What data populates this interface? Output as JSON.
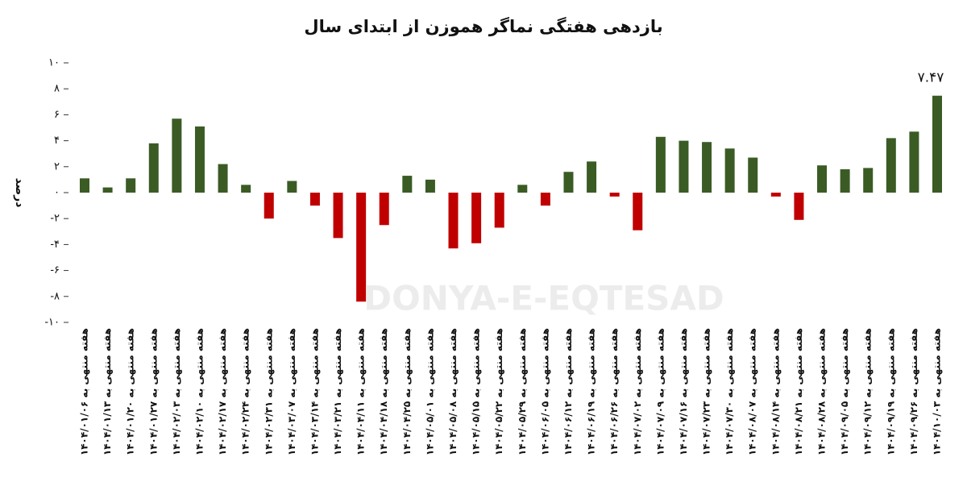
{
  "chart_data": {
    "type": "bar",
    "title": "بازدهی هفتگی نماگر هموزن از ابتدای سال",
    "y_label": "درصد",
    "watermark": "DONYA-E-EQTESAD",
    "categories": [
      "هفته منتهی به ۱۴۰۴/۰۱/۰۶",
      "هفته منتهی به ۱۴۰۴/۰۱/۱۳",
      "هفته منتهی به ۱۴۰۴/۰۱/۲۰",
      "هفته منتهی به ۱۴۰۴/۰۱/۲۷",
      "هفته منتهی به ۱۴۰۴/۰۲/۰۳",
      "هفته منتهی به ۱۴۰۴/۰۲/۱۰",
      "هفته منتهی به ۱۴۰۴/۰۲/۱۷",
      "هفته منتهی به ۱۴۰۴/۰۲/۲۴",
      "هفته منتهی به ۱۴۰۴/۰۲/۳۱",
      "هفته منتهی به ۱۴۰۴/۰۳/۰۷",
      "هفته منتهی به ۱۴۰۴/۰۳/۱۴",
      "هفته منتهی به ۱۴۰۴/۰۳/۲۱",
      "هفته منتهی به ۱۴۰۴/۰۴/۱۱",
      "هفته منتهی به ۱۴۰۴/۰۴/۱۸",
      "هفته منتهی به ۱۴۰۴/۰۴/۲۵",
      "هفته منتهی به ۱۴۰۴/۰۵/۰۱",
      "هفته منتهی به ۱۴۰۴/۰۵/۰۸",
      "هفته منتهی به ۱۴۰۴/۰۵/۱۵",
      "هفته منتهی به ۱۴۰۴/۰۵/۲۲",
      "هفته منتهی به ۱۴۰۴/۰۵/۲۹",
      "هفته منتهی به ۱۴۰۴/۰۶/۰۵",
      "هفته منتهی به ۱۴۰۴/۰۶/۱۲",
      "هفته منتهی به ۱۴۰۴/۰۶/۱۹",
      "هفته منتهی به ۱۴۰۴/۰۶/۲۶",
      "هفته منتهی به ۱۴۰۴/۰۷/۰۲",
      "هفته منتهی به ۱۴۰۴/۰۷/۰۹",
      "هفته منتهی به ۱۴۰۴/۰۷/۱۶",
      "هفته منتهی به ۱۴۰۴/۰۷/۲۳",
      "هفته منتهی به ۱۴۰۴/۰۷/۳۰",
      "هفته منتهی به ۱۴۰۴/۰۸/۰۷",
      "هفته منتهی به ۱۴۰۴/۰۸/۱۴",
      "هفته منتهی به ۱۴۰۴/۰۸/۲۱",
      "هفته منتهی به ۱۴۰۴/۰۸/۲۸",
      "هفته منتهی به ۱۴۰۴/۰۹/۰۵",
      "هفته منتهی به ۱۴۰۴/۰۹/۱۲",
      "هفته منتهی به ۱۴۰۴/۰۹/۱۹",
      "هفته منتهی به ۱۴۰۴/۰۹/۲۶",
      "هفته منتهی به ۱۴۰۴/۱۰/۰۳"
    ],
    "values": [
      1.1,
      0.4,
      1.1,
      3.8,
      5.7,
      5.1,
      2.2,
      0.6,
      -2.0,
      0.9,
      -1.0,
      -3.5,
      -8.4,
      -2.5,
      1.3,
      1.0,
      -4.3,
      -3.9,
      -2.7,
      0.6,
      -1.0,
      1.6,
      2.4,
      -0.3,
      -2.9,
      4.3,
      4.0,
      3.9,
      3.4,
      2.7,
      -0.3,
      -2.1,
      2.1,
      1.8,
      1.9,
      4.2,
      4.7,
      7.47
    ],
    "value_labels": [
      null,
      null,
      null,
      null,
      null,
      null,
      null,
      null,
      null,
      null,
      null,
      null,
      null,
      null,
      null,
      null,
      null,
      null,
      null,
      null,
      null,
      null,
      null,
      null,
      null,
      null,
      null,
      null,
      null,
      null,
      null,
      null,
      null,
      null,
      null,
      null,
      null,
      "۷.۴۷"
    ],
    "positive_color": "#3b5b25",
    "negative_color": "#c00000",
    "ylim": [
      -10,
      10
    ],
    "yticks": [
      {
        "value": -10,
        "label": "-۱۰"
      },
      {
        "value": -8,
        "label": "-۸"
      },
      {
        "value": -6,
        "label": "-۶"
      },
      {
        "value": -4,
        "label": "-۴"
      },
      {
        "value": -2,
        "label": "-۲"
      },
      {
        "value": 0,
        "label": "۰"
      },
      {
        "value": 2,
        "label": "۲"
      },
      {
        "value": 4,
        "label": "۴"
      },
      {
        "value": 6,
        "label": "۶"
      },
      {
        "value": 8,
        "label": "۸"
      },
      {
        "value": 10,
        "label": "۱۰"
      }
    ],
    "grid": false
  }
}
